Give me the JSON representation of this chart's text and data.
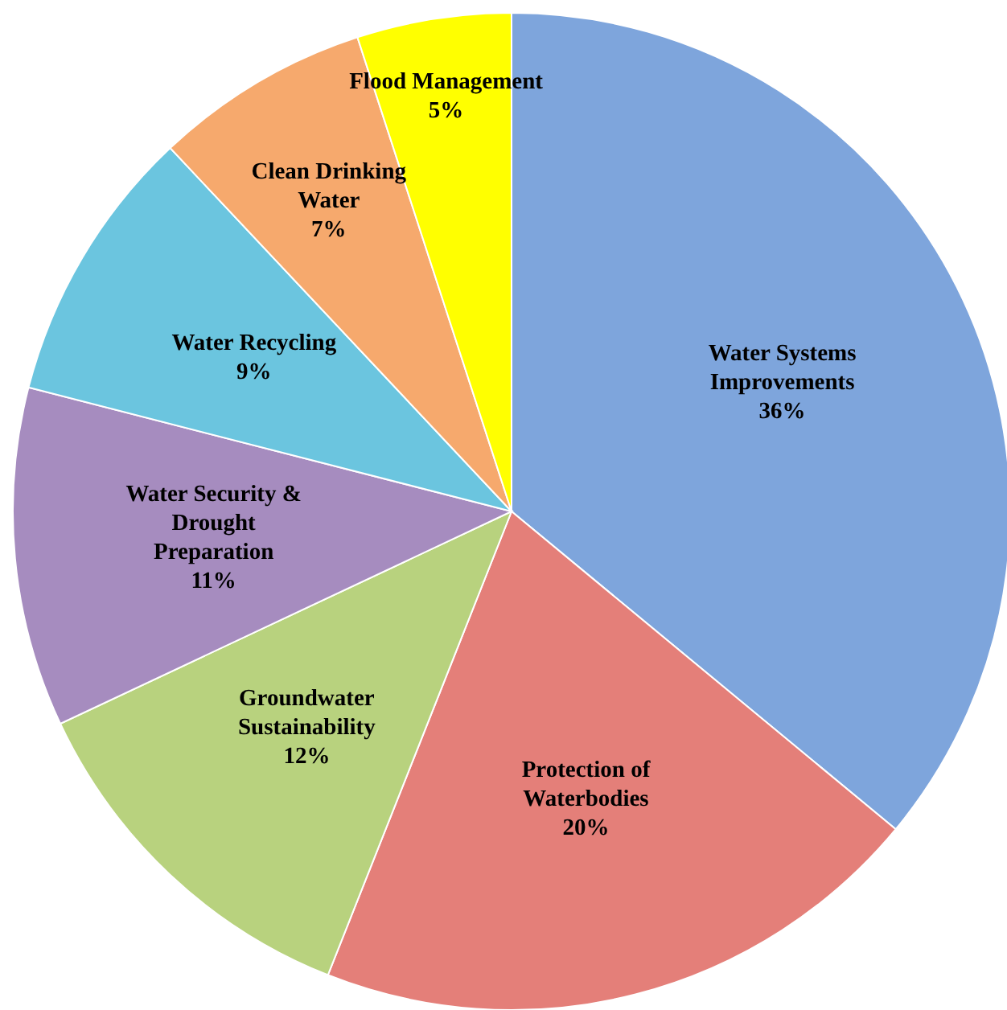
{
  "chart_data": {
    "type": "pie",
    "categories": [
      "Water Systems Improvements",
      "Protection of Waterbodies",
      "Groundwater Sustainability",
      "Water Security & Drought Preparation",
      "Water Recycling",
      "Clean Drinking Water",
      "Flood Management"
    ],
    "values": [
      36,
      20,
      12,
      11,
      9,
      7,
      5
    ],
    "colors": [
      "#7ea5dc",
      "#e47f79",
      "#b8d27e",
      "#a68cbf",
      "#6bc5df",
      "#f6a96d",
      "#ffff00"
    ],
    "value_labels": [
      "36%",
      "20%",
      "12%",
      "11%",
      "9%",
      "7%",
      "5%"
    ]
  }
}
